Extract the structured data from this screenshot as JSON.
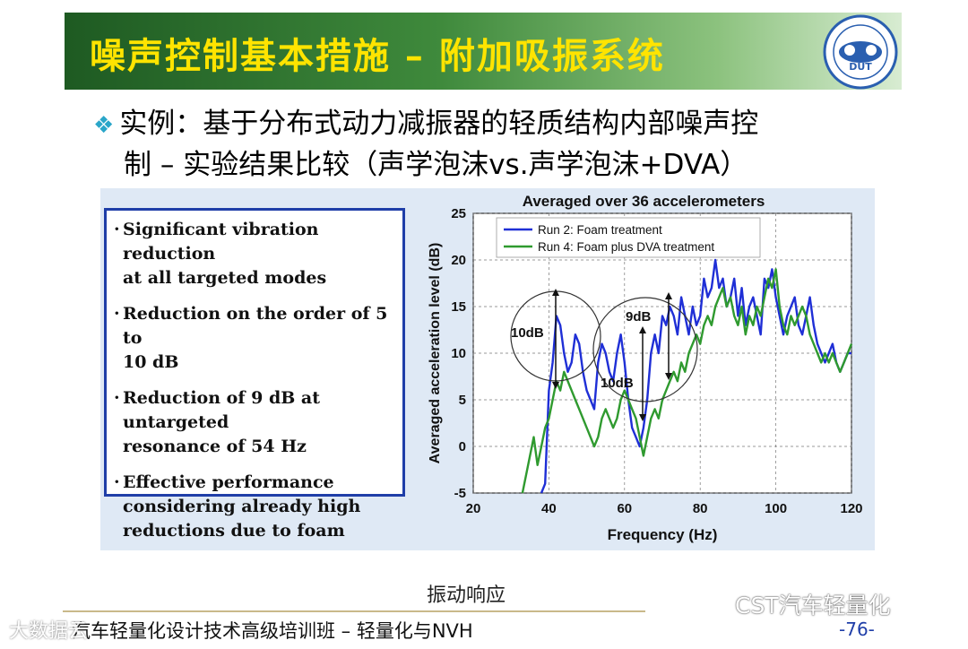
{
  "slide": {
    "title": "噪声控制基本措施 – 附加吸振系统",
    "logo_text": "DUT",
    "subtitle_line1": "实例：基于分布式动力减振器的轻质结构内部噪声控",
    "subtitle_line2": "制 – 实验结果比较（声学泡沫vs.声学泡沫+DVA）",
    "bullet_icon": "diamond-bullet-icon",
    "bullets": [
      [
        "Significant vibration reduction",
        "at all targeted modes"
      ],
      [
        "Reduction on the order of 5 to",
        "10 dB"
      ],
      [
        "Reduction of 9 dB at untargeted",
        "resonance of 54 Hz"
      ],
      [
        "Effective performance",
        "considering already high",
        "reductions due to foam"
      ]
    ],
    "caption": "振动响应",
    "footer": "汽车轻量化设计技术高级培训班 – 轻量化与NVH",
    "page_number": "-76-",
    "watermark_left": "大数据云",
    "watermark_right": "CST汽车轻量化",
    "colors": {
      "title_text": "#ffe400",
      "run2": "#1f2fd6",
      "run4": "#2f9a2f",
      "accent_border": "#1f3ea8"
    }
  },
  "chart_data": {
    "type": "line",
    "title": "Averaged over 36 accelerometers",
    "xlabel": "Frequency (Hz)",
    "ylabel": "Averaged acceleration level (dB)",
    "xlim": [
      20,
      120
    ],
    "ylim": [
      -5,
      25
    ],
    "xticks": [
      20,
      40,
      60,
      80,
      100,
      120
    ],
    "yticks": [
      -5,
      0,
      5,
      10,
      15,
      20,
      25
    ],
    "grid": true,
    "legend": "top-left",
    "annotations": [
      "10dB",
      "9dB",
      "10dB"
    ],
    "series": [
      {
        "name": "Run 2: Foam treatment",
        "color": "#1f2fd6",
        "x": [
          38,
          39,
          40,
          41,
          42,
          43,
          44,
          45,
          46,
          47,
          48,
          49,
          50,
          51,
          52,
          53,
          54,
          55,
          56,
          57,
          58,
          59,
          60,
          61,
          62,
          63,
          64,
          65,
          66,
          67,
          68,
          69,
          70,
          71,
          72,
          73,
          74,
          75,
          76,
          77,
          78,
          79,
          80,
          81,
          82,
          83,
          84,
          85,
          86,
          87,
          88,
          89,
          90,
          91,
          92,
          93,
          94,
          95,
          96,
          97,
          98,
          99,
          100,
          101,
          102,
          103,
          104,
          105,
          106,
          107,
          108,
          109,
          110,
          111,
          112,
          113,
          114,
          115,
          116,
          117,
          118,
          119,
          120
        ],
        "y": [
          -5,
          -4,
          6,
          9,
          14,
          13,
          10,
          8,
          9,
          12,
          11,
          8,
          6,
          5,
          4,
          9,
          11,
          10,
          8,
          7,
          10,
          12,
          9,
          5,
          2,
          1,
          0,
          2,
          5,
          10,
          12,
          10,
          14,
          13,
          15,
          14,
          12,
          16,
          14,
          12,
          15,
          13,
          14,
          18,
          16,
          17,
          20,
          17,
          18,
          15,
          16,
          18,
          14,
          17,
          13,
          15,
          16,
          14,
          12,
          18,
          17,
          19,
          16,
          14,
          12,
          14,
          15,
          16,
          13,
          12,
          14,
          16,
          13,
          11,
          10,
          9,
          10,
          11,
          9,
          8,
          9,
          10,
          10
        ]
      },
      {
        "name": "Run 4: Foam plus DVA treatment",
        "color": "#2f9a2f",
        "x": [
          33,
          34,
          35,
          36,
          37,
          38,
          39,
          40,
          41,
          42,
          43,
          44,
          45,
          46,
          47,
          48,
          49,
          50,
          51,
          52,
          53,
          54,
          55,
          56,
          57,
          58,
          59,
          60,
          61,
          62,
          63,
          64,
          65,
          66,
          67,
          68,
          69,
          70,
          71,
          72,
          73,
          74,
          75,
          76,
          77,
          78,
          79,
          80,
          81,
          82,
          83,
          84,
          85,
          86,
          87,
          88,
          89,
          90,
          91,
          92,
          93,
          94,
          95,
          96,
          97,
          98,
          99,
          100,
          101,
          102,
          103,
          104,
          105,
          106,
          107,
          108,
          109,
          110,
          111,
          112,
          113,
          114,
          115,
          116,
          117,
          118,
          119,
          120
        ],
        "y": [
          -5,
          -3,
          -1,
          1,
          -2,
          0,
          2,
          3,
          5,
          7,
          6,
          8,
          7,
          6,
          5,
          4,
          3,
          2,
          1,
          0,
          1,
          3,
          4,
          3,
          2,
          3,
          5,
          6,
          5,
          4,
          3,
          1,
          -1,
          1,
          3,
          4,
          3,
          5,
          6,
          7,
          8,
          7,
          9,
          8,
          10,
          11,
          12,
          11,
          13,
          14,
          13,
          15,
          16,
          17,
          15,
          16,
          14,
          13,
          15,
          12,
          14,
          13,
          15,
          14,
          16,
          18,
          17,
          19,
          15,
          13,
          12,
          14,
          13,
          14,
          15,
          14,
          12,
          11,
          10,
          9,
          10,
          9,
          10,
          9,
          8,
          9,
          10,
          11
        ]
      }
    ]
  }
}
